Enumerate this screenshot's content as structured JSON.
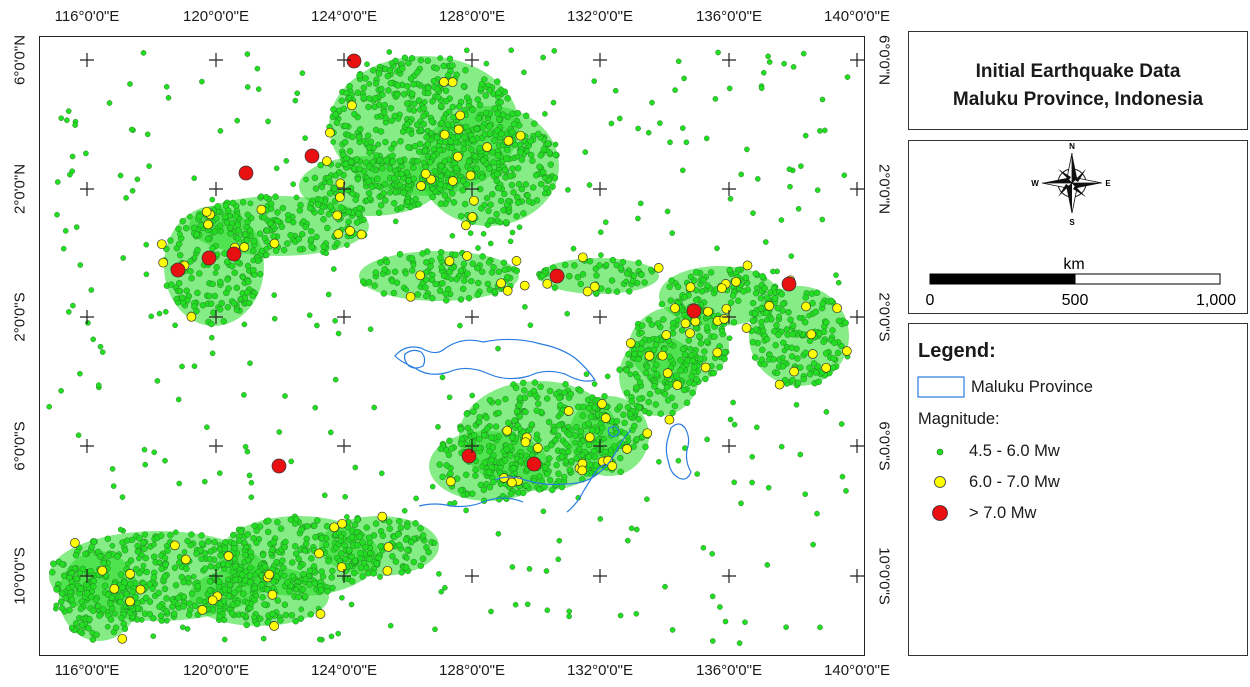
{
  "title": {
    "line1": "Initial Earthquake Data",
    "line2": "Maluku Province, Indonesia"
  },
  "longitude_labels": [
    "116°0'0\"E",
    "120°0'0\"E",
    "124°0'0\"E",
    "128°0'0\"E",
    "132°0'0\"E",
    "136°0'0\"E",
    "140°0'0\"E"
  ],
  "latitude_labels": [
    "6°0'0\"N",
    "2°0'0\"N",
    "2°0'0\"S",
    "6°0'0\"S",
    "10°0'0\"S"
  ],
  "north_arrow": {
    "n": "N",
    "s": "S",
    "e": "E",
    "w": "W"
  },
  "scale_bar": {
    "unit": "km",
    "ticks": [
      "0",
      "500",
      "1,000"
    ]
  },
  "legend": {
    "title": "Legend:",
    "province_label": "Maluku Province",
    "magnitude_heading": "Magnitude:",
    "classes": [
      {
        "label": "4.5 - 6.0 Mw",
        "color": "#22dd22"
      },
      {
        "label": "6.0 - 7.0 Mw",
        "color": "#ffff00"
      },
      {
        "label": "> 7.0 Mw",
        "color": "#e81010"
      }
    ]
  },
  "colors": {
    "province_outline": "#2a7de0",
    "point_outline": "#2a6b2a"
  }
}
